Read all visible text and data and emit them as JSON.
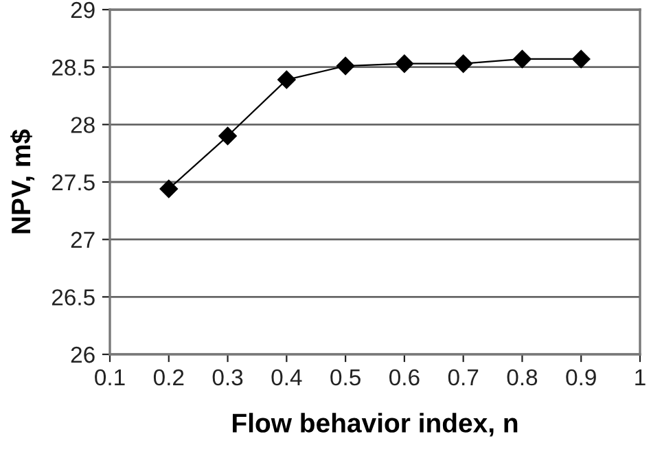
{
  "chart_data": {
    "type": "line",
    "xlabel": "Flow behavior index, n",
    "ylabel": "NPV, m$",
    "x": [
      0.2,
      0.3,
      0.4,
      0.5,
      0.6,
      0.7,
      0.8,
      0.9
    ],
    "series": [
      {
        "color": "#000000",
        "values": [
          27.44,
          27.9,
          28.39,
          28.51,
          28.53,
          28.53,
          28.57,
          28.57
        ]
      }
    ],
    "xlim": [
      0.1,
      1
    ],
    "xticks": [
      0.1,
      0.2,
      0.3,
      0.4,
      0.5,
      0.6,
      0.7,
      0.8,
      0.9,
      1
    ],
    "ylim": [
      26,
      29
    ],
    "yticks": [
      26,
      26.5,
      27,
      27.5,
      28,
      28.5,
      29
    ],
    "grid": "y",
    "legend": false,
    "marker": "diamond",
    "line_style": "solid"
  }
}
